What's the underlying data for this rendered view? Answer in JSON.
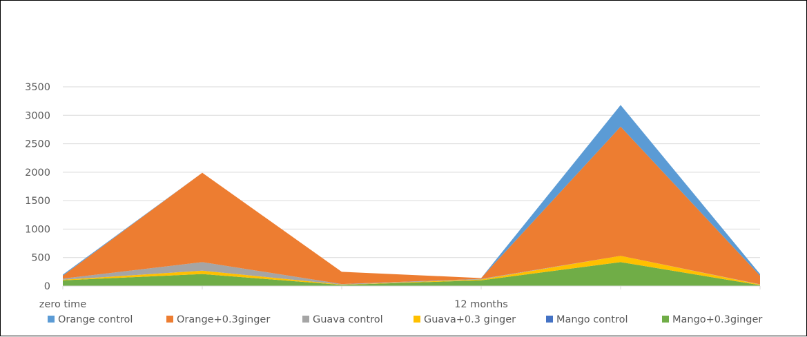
{
  "chart_data": {
    "type": "area",
    "stacked": true,
    "categories": [
      "zero time",
      "",
      "",
      "12 months",
      "",
      ""
    ],
    "ylim": [
      0,
      3500
    ],
    "yticks": [
      0,
      500,
      1000,
      1500,
      2000,
      2500,
      3000,
      3500
    ],
    "grid": true,
    "legend_position": "bottom",
    "series": [
      {
        "name": "Mango+0.3ginger",
        "color": "#70AD47",
        "values": [
          100,
          210,
          20,
          100,
          420,
          15
        ]
      },
      {
        "name": "Mango control",
        "color": "#4472C4",
        "values": [
          0,
          0,
          0,
          0,
          0,
          0
        ]
      },
      {
        "name": "Guava+0.3 ginger",
        "color": "#FFC000",
        "values": [
          10,
          60,
          5,
          15,
          110,
          10
        ]
      },
      {
        "name": "Guava control",
        "color": "#A5A5A5",
        "values": [
          20,
          150,
          10,
          10,
          0,
          5
        ]
      },
      {
        "name": "Orange+0.3ginger",
        "color": "#ED7D31",
        "values": [
          50,
          1570,
          215,
          15,
          2270,
          150
        ]
      },
      {
        "name": "Orange control",
        "color": "#5B9BD5",
        "values": [
          20,
          0,
          0,
          0,
          380,
          30
        ]
      }
    ],
    "legend_order": [
      "Orange control",
      "Orange+0.3ginger",
      "Guava control",
      "Guava+0.3 ginger",
      "Mango control",
      "Mango+0.3ginger"
    ]
  }
}
